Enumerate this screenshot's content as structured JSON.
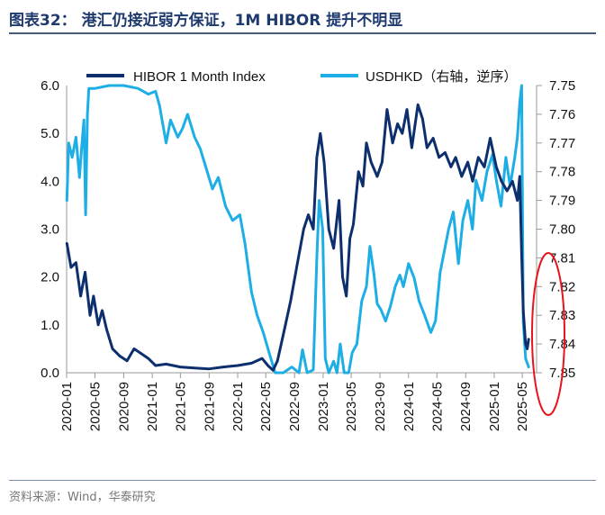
{
  "page": {
    "title": "图表32：  港汇仍接近弱方保证，1M HIBOR 提升不明显",
    "source": "资料来源：Wind，华泰研究"
  },
  "chart_data": {
    "type": "line",
    "x_ticks": [
      "2020-01",
      "2020-05",
      "2020-09",
      "2021-01",
      "2021-05",
      "2021-09",
      "2022-01",
      "2022-05",
      "2022-09",
      "2023-01",
      "2023-05",
      "2023-09",
      "2024-01",
      "2024-05",
      "2024-09",
      "2025-01",
      "2025-05"
    ],
    "y_left": {
      "ticks": [
        "0.0",
        "1.0",
        "2.0",
        "3.0",
        "4.0",
        "5.0",
        "6.0"
      ],
      "range": [
        0,
        6
      ]
    },
    "y_right": {
      "ticks": [
        "7.75",
        "7.76",
        "7.77",
        "7.78",
        "7.79",
        "7.80",
        "7.81",
        "7.82",
        "7.83",
        "7.84",
        "7.85"
      ],
      "range": [
        7.75,
        7.85
      ],
      "reversed": true
    },
    "series": [
      {
        "name": "HIBOR 1 Month Index",
        "axis": "left",
        "color": "#0d2f6e",
        "points": [
          [
            "2020-01-02",
            2.7
          ],
          [
            "2020-01-20",
            2.2
          ],
          [
            "2020-02-10",
            2.3
          ],
          [
            "2020-03-01",
            1.6
          ],
          [
            "2020-03-20",
            2.1
          ],
          [
            "2020-04-10",
            1.2
          ],
          [
            "2020-04-25",
            1.6
          ],
          [
            "2020-05-15",
            1.0
          ],
          [
            "2020-06-01",
            1.3
          ],
          [
            "2020-06-20",
            0.9
          ],
          [
            "2020-07-15",
            0.5
          ],
          [
            "2020-08-15",
            0.35
          ],
          [
            "2020-09-15",
            0.25
          ],
          [
            "2020-10-15",
            0.5
          ],
          [
            "2020-11-15",
            0.4
          ],
          [
            "2020-12-15",
            0.3
          ],
          [
            "2021-01-15",
            0.15
          ],
          [
            "2021-03-01",
            0.18
          ],
          [
            "2021-05-01",
            0.12
          ],
          [
            "2021-07-01",
            0.1
          ],
          [
            "2021-09-01",
            0.08
          ],
          [
            "2021-11-01",
            0.12
          ],
          [
            "2022-01-01",
            0.15
          ],
          [
            "2022-03-01",
            0.2
          ],
          [
            "2022-04-15",
            0.3
          ],
          [
            "2022-05-10",
            0.15
          ],
          [
            "2022-06-01",
            0.05
          ],
          [
            "2022-06-20",
            0.25
          ],
          [
            "2022-07-15",
            0.8
          ],
          [
            "2022-08-15",
            1.5
          ],
          [
            "2022-09-10",
            2.2
          ],
          [
            "2022-10-10",
            3.0
          ],
          [
            "2022-10-30",
            3.3
          ],
          [
            "2022-11-20",
            3.0
          ],
          [
            "2022-12-05",
            4.5
          ],
          [
            "2022-12-20",
            5.0
          ],
          [
            "2023-01-05",
            4.4
          ],
          [
            "2023-01-25",
            3.0
          ],
          [
            "2023-02-15",
            2.6
          ],
          [
            "2023-03-10",
            3.6
          ],
          [
            "2023-03-25",
            2.0
          ],
          [
            "2023-04-10",
            1.6
          ],
          [
            "2023-04-25",
            2.8
          ],
          [
            "2023-05-10",
            3.1
          ],
          [
            "2023-06-01",
            4.2
          ],
          [
            "2023-06-20",
            3.9
          ],
          [
            "2023-07-05",
            4.8
          ],
          [
            "2023-07-25",
            4.4
          ],
          [
            "2023-08-20",
            4.1
          ],
          [
            "2023-09-10",
            4.4
          ],
          [
            "2023-10-01",
            5.5
          ],
          [
            "2023-10-25",
            4.8
          ],
          [
            "2023-11-15",
            5.2
          ],
          [
            "2023-12-05",
            5.0
          ],
          [
            "2023-12-25",
            5.5
          ],
          [
            "2024-01-15",
            4.7
          ],
          [
            "2024-02-10",
            5.6
          ],
          [
            "2024-03-01",
            5.3
          ],
          [
            "2024-03-20",
            4.7
          ],
          [
            "2024-04-15",
            4.9
          ],
          [
            "2024-05-10",
            4.5
          ],
          [
            "2024-06-05",
            4.6
          ],
          [
            "2024-06-30",
            4.3
          ],
          [
            "2024-07-20",
            4.5
          ],
          [
            "2024-08-15",
            4.1
          ],
          [
            "2024-09-10",
            4.4
          ],
          [
            "2024-10-01",
            4.0
          ],
          [
            "2024-10-25",
            4.5
          ],
          [
            "2024-11-20",
            4.3
          ],
          [
            "2024-12-15",
            4.9
          ],
          [
            "2025-01-10",
            4.3
          ],
          [
            "2025-02-01",
            4.0
          ],
          [
            "2025-02-25",
            3.8
          ],
          [
            "2025-03-20",
            4.0
          ],
          [
            "2025-04-10",
            3.6
          ],
          [
            "2025-04-20",
            4.1
          ],
          [
            "2025-04-28",
            2.5
          ],
          [
            "2025-05-05",
            1.3
          ],
          [
            "2025-05-15",
            0.6
          ],
          [
            "2025-05-22",
            0.5
          ],
          [
            "2025-05-28",
            0.7
          ]
        ]
      },
      {
        "name": "USDHKD（右轴，逆序）",
        "axis": "right",
        "color": "#1eaee6",
        "points": [
          [
            "2020-01-02",
            7.79
          ],
          [
            "2020-01-10",
            7.77
          ],
          [
            "2020-01-25",
            7.775
          ],
          [
            "2020-02-10",
            7.768
          ],
          [
            "2020-02-25",
            7.782
          ],
          [
            "2020-03-05",
            7.772
          ],
          [
            "2020-03-15",
            7.762
          ],
          [
            "2020-03-22",
            7.795
          ],
          [
            "2020-03-30",
            7.76
          ],
          [
            "2020-04-05",
            7.751
          ],
          [
            "2020-05-01",
            7.751
          ],
          [
            "2020-07-01",
            7.75
          ],
          [
            "2020-09-01",
            7.75
          ],
          [
            "2020-11-01",
            7.751
          ],
          [
            "2020-12-15",
            7.753
          ],
          [
            "2021-01-15",
            7.752
          ],
          [
            "2021-02-01",
            7.757
          ],
          [
            "2021-03-01",
            7.77
          ],
          [
            "2021-03-20",
            7.762
          ],
          [
            "2021-04-20",
            7.768
          ],
          [
            "2021-05-10",
            7.765
          ],
          [
            "2021-06-01",
            7.76
          ],
          [
            "2021-07-01",
            7.768
          ],
          [
            "2021-07-25",
            7.772
          ],
          [
            "2021-08-20",
            7.779
          ],
          [
            "2021-09-15",
            7.786
          ],
          [
            "2021-10-10",
            7.782
          ],
          [
            "2021-11-10",
            7.792
          ],
          [
            "2021-12-10",
            7.797
          ],
          [
            "2022-01-10",
            7.795
          ],
          [
            "2022-02-01",
            7.805
          ],
          [
            "2022-03-01",
            7.822
          ],
          [
            "2022-03-25",
            7.83
          ],
          [
            "2022-04-20",
            7.836
          ],
          [
            "2022-05-15",
            7.843
          ],
          [
            "2022-06-10",
            7.85
          ],
          [
            "2022-07-15",
            7.85
          ],
          [
            "2022-08-20",
            7.848
          ],
          [
            "2022-09-20",
            7.85
          ],
          [
            "2022-10-05",
            7.842
          ],
          [
            "2022-10-25",
            7.85
          ],
          [
            "2022-11-20",
            7.849
          ],
          [
            "2022-12-05",
            7.81
          ],
          [
            "2022-12-15",
            7.79
          ],
          [
            "2022-12-30",
            7.8
          ],
          [
            "2023-01-10",
            7.845
          ],
          [
            "2023-01-25",
            7.85
          ],
          [
            "2023-02-15",
            7.846
          ],
          [
            "2023-03-01",
            7.85
          ],
          [
            "2023-03-15",
            7.84
          ],
          [
            "2023-04-01",
            7.85
          ],
          [
            "2023-04-20",
            7.85
          ],
          [
            "2023-05-05",
            7.843
          ],
          [
            "2023-05-25",
            7.84
          ],
          [
            "2023-06-15",
            7.825
          ],
          [
            "2023-07-05",
            7.82
          ],
          [
            "2023-07-20",
            7.806
          ],
          [
            "2023-08-05",
            7.815
          ],
          [
            "2023-08-20",
            7.826
          ],
          [
            "2023-09-05",
            7.828
          ],
          [
            "2023-09-25",
            7.832
          ],
          [
            "2023-10-15",
            7.827
          ],
          [
            "2023-11-05",
            7.82
          ],
          [
            "2023-11-25",
            7.816
          ],
          [
            "2023-12-10",
            7.82
          ],
          [
            "2024-01-01",
            7.812
          ],
          [
            "2024-01-25",
            7.817
          ],
          [
            "2024-02-15",
            7.825
          ],
          [
            "2024-03-10",
            7.83
          ],
          [
            "2024-04-05",
            7.836
          ],
          [
            "2024-04-25",
            7.832
          ],
          [
            "2024-05-15",
            7.815
          ],
          [
            "2024-06-01",
            7.808
          ],
          [
            "2024-06-20",
            7.8
          ],
          [
            "2024-07-10",
            7.794
          ],
          [
            "2024-08-01",
            7.812
          ],
          [
            "2024-08-20",
            7.797
          ],
          [
            "2024-09-10",
            7.79
          ],
          [
            "2024-09-30",
            7.8
          ],
          [
            "2024-10-15",
            7.783
          ],
          [
            "2024-11-10",
            7.79
          ],
          [
            "2024-12-01",
            7.78
          ],
          [
            "2024-12-25",
            7.774
          ],
          [
            "2025-01-10",
            7.783
          ],
          [
            "2025-01-30",
            7.792
          ],
          [
            "2025-02-20",
            7.775
          ],
          [
            "2025-03-10",
            7.785
          ],
          [
            "2025-03-30",
            7.775
          ],
          [
            "2025-04-10",
            7.768
          ],
          [
            "2025-04-20",
            7.756
          ],
          [
            "2025-04-28",
            7.75
          ],
          [
            "2025-05-05",
            7.832
          ],
          [
            "2025-05-15",
            7.845
          ],
          [
            "2025-05-28",
            7.848
          ]
        ]
      }
    ]
  }
}
